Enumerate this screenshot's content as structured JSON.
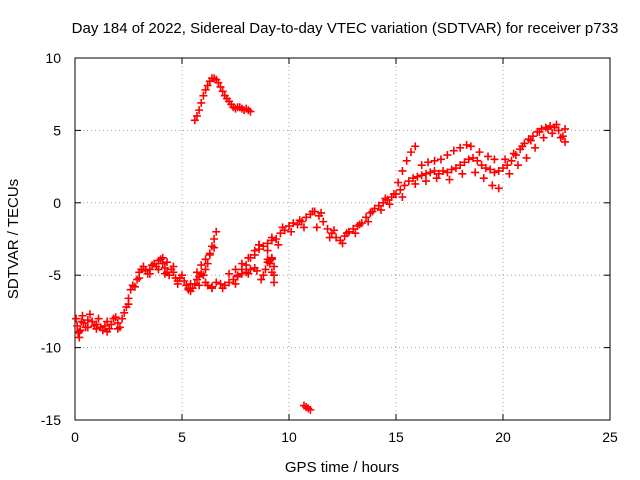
{
  "chart_data": {
    "type": "scatter",
    "title": "Day 184 of 2022, Sidereal Day-to-day VTEC variation (SDTVAR) for receiver p733",
    "xlabel": "GPS time / hours",
    "ylabel": "SDTVAR / TECUs",
    "xlim": [
      0,
      25
    ],
    "ylim": [
      -15,
      10
    ],
    "xticks": [
      0,
      5,
      10,
      15,
      20,
      25
    ],
    "xtick_labels": [
      "0",
      "5",
      "10",
      "15",
      "20",
      "25"
    ],
    "yticks": [
      -15,
      -10,
      -5,
      0,
      5,
      10
    ],
    "ytick_labels": [
      "-15",
      "-10",
      "-5",
      "0",
      "5",
      "10"
    ],
    "grid": true,
    "legend": "none",
    "marker": "plus",
    "series_color": "#ff0000",
    "series": [
      {
        "name": "main",
        "points": [
          [
            0.05,
            -8.0
          ],
          [
            0.1,
            -8.5
          ],
          [
            0.15,
            -9.0
          ],
          [
            0.2,
            -9.3
          ],
          [
            0.25,
            -8.8
          ],
          [
            0.3,
            -8.2
          ],
          [
            0.35,
            -7.8
          ],
          [
            0.4,
            -8.3
          ],
          [
            0.5,
            -8.6
          ],
          [
            0.6,
            -8.1
          ],
          [
            0.7,
            -7.7
          ],
          [
            0.8,
            -8.2
          ],
          [
            0.9,
            -8.5
          ],
          [
            1.0,
            -8.4
          ],
          [
            1.1,
            -8.0
          ],
          [
            1.2,
            -8.6
          ],
          [
            1.3,
            -8.8
          ],
          [
            1.4,
            -8.5
          ],
          [
            1.5,
            -8.2
          ],
          [
            1.6,
            -8.7
          ],
          [
            1.7,
            -8.4
          ],
          [
            1.8,
            -8.0
          ],
          [
            1.9,
            -7.9
          ],
          [
            2.0,
            -8.3
          ],
          [
            2.1,
            -8.6
          ],
          [
            2.2,
            -8.0
          ],
          [
            2.3,
            -7.6
          ],
          [
            2.4,
            -7.2
          ],
          [
            2.5,
            -6.6
          ],
          [
            2.6,
            -6.0
          ],
          [
            2.7,
            -5.7
          ],
          [
            2.8,
            -5.8
          ],
          [
            2.9,
            -5.3
          ],
          [
            3.0,
            -4.8
          ],
          [
            3.1,
            -4.6
          ],
          [
            3.2,
            -4.4
          ],
          [
            3.3,
            -4.7
          ],
          [
            3.4,
            -4.9
          ],
          [
            3.5,
            -4.6
          ],
          [
            3.6,
            -4.3
          ],
          [
            3.7,
            -4.2
          ],
          [
            3.8,
            -4.4
          ],
          [
            3.9,
            -4.6
          ],
          [
            4.0,
            -3.9
          ],
          [
            4.1,
            -4.2
          ],
          [
            4.2,
            -4.5
          ],
          [
            4.3,
            -4.8
          ],
          [
            4.4,
            -5.0
          ],
          [
            4.5,
            -4.6
          ],
          [
            4.6,
            -4.8
          ],
          [
            4.7,
            -5.2
          ],
          [
            4.8,
            -5.4
          ],
          [
            4.9,
            -5.2
          ],
          [
            5.0,
            -5.0
          ],
          [
            5.1,
            -5.4
          ],
          [
            5.2,
            -5.7
          ],
          [
            5.3,
            -6.0
          ],
          [
            5.4,
            -6.1
          ],
          [
            5.5,
            -5.9
          ],
          [
            5.6,
            -5.6
          ],
          [
            5.7,
            -5.3
          ],
          [
            5.8,
            -5.1
          ],
          [
            5.9,
            -4.9
          ],
          [
            6.0,
            -5.0
          ],
          [
            6.1,
            -4.6
          ],
          [
            6.2,
            -4.2
          ],
          [
            6.3,
            -3.6
          ],
          [
            6.4,
            -3.0
          ],
          [
            6.5,
            -2.5
          ],
          [
            6.6,
            -2.0
          ],
          [
            6.1,
            -5.5
          ],
          [
            6.2,
            -5.7
          ],
          [
            6.4,
            -5.8
          ],
          [
            6.6,
            -5.5
          ],
          [
            6.8,
            -5.6
          ],
          [
            7.0,
            -5.7
          ],
          [
            7.2,
            -5.5
          ],
          [
            7.4,
            -5.3
          ],
          [
            7.6,
            -5.1
          ],
          [
            7.8,
            -4.9
          ],
          [
            8.0,
            -4.8
          ],
          [
            8.2,
            -4.6
          ],
          [
            8.4,
            -4.5
          ],
          [
            8.6,
            -3.2
          ],
          [
            8.8,
            -3.0
          ],
          [
            9.0,
            -2.8
          ],
          [
            9.2,
            -2.6
          ],
          [
            9.4,
            -2.5
          ],
          [
            9.6,
            -2.1
          ],
          [
            9.8,
            -1.9
          ],
          [
            10.0,
            -1.6
          ],
          [
            10.2,
            -1.4
          ],
          [
            10.4,
            -1.5
          ],
          [
            10.6,
            -1.3
          ],
          [
            10.8,
            -1.0
          ],
          [
            11.0,
            -0.8
          ],
          [
            11.2,
            -0.6
          ],
          [
            11.4,
            -0.9
          ],
          [
            11.6,
            -1.3
          ],
          [
            11.8,
            -1.8
          ],
          [
            12.0,
            -2.1
          ],
          [
            12.2,
            -2.4
          ],
          [
            12.4,
            -2.6
          ],
          [
            12.6,
            -2.3
          ],
          [
            12.8,
            -2.0
          ],
          [
            13.0,
            -1.8
          ],
          [
            13.2,
            -1.6
          ],
          [
            13.4,
            -1.4
          ],
          [
            13.6,
            -1.0
          ],
          [
            13.8,
            -0.7
          ],
          [
            14.0,
            -0.4
          ],
          [
            14.2,
            -0.2
          ],
          [
            14.4,
            0.0
          ],
          [
            14.6,
            0.2
          ],
          [
            14.8,
            0.4
          ],
          [
            15.0,
            0.6
          ],
          [
            15.2,
            0.9
          ],
          [
            15.4,
            1.2
          ],
          [
            15.6,
            1.5
          ],
          [
            15.8,
            1.7
          ],
          [
            16.0,
            1.8
          ],
          [
            16.2,
            1.9
          ],
          [
            16.4,
            2.0
          ],
          [
            16.6,
            2.1
          ],
          [
            16.8,
            2.2
          ],
          [
            17.0,
            2.0
          ],
          [
            17.2,
            2.2
          ],
          [
            17.4,
            2.1
          ],
          [
            17.6,
            2.3
          ],
          [
            17.8,
            2.4
          ],
          [
            18.0,
            2.6
          ],
          [
            18.2,
            2.8
          ],
          [
            18.4,
            3.0
          ],
          [
            18.6,
            3.1
          ],
          [
            18.8,
            2.9
          ],
          [
            19.0,
            2.6
          ],
          [
            19.2,
            2.4
          ],
          [
            19.4,
            2.3
          ],
          [
            19.6,
            2.1
          ],
          [
            19.8,
            2.2
          ],
          [
            20.0,
            2.4
          ],
          [
            20.2,
            2.6
          ],
          [
            20.4,
            2.9
          ],
          [
            20.6,
            3.3
          ],
          [
            20.8,
            3.7
          ],
          [
            21.0,
            4.1
          ],
          [
            21.2,
            4.4
          ],
          [
            21.4,
            4.6
          ],
          [
            21.6,
            4.9
          ],
          [
            21.8,
            5.1
          ],
          [
            22.0,
            5.2
          ],
          [
            22.2,
            5.3
          ],
          [
            22.4,
            5.2
          ],
          [
            22.6,
            5.0
          ],
          [
            22.8,
            4.6
          ]
        ]
      },
      {
        "name": "upper-band",
        "points": [
          [
            3.9,
            -4.0
          ],
          [
            4.1,
            -3.8
          ],
          [
            4.3,
            -4.1
          ],
          [
            4.6,
            -4.4
          ],
          [
            5.4,
            -5.6
          ],
          [
            5.7,
            -4.8
          ],
          [
            5.9,
            -4.3
          ],
          [
            6.1,
            -3.9
          ],
          [
            6.3,
            -3.5
          ],
          [
            6.5,
            -3.1
          ],
          [
            7.2,
            -4.9
          ],
          [
            7.5,
            -4.6
          ],
          [
            7.8,
            -4.2
          ],
          [
            8.1,
            -3.8
          ],
          [
            8.4,
            -3.6
          ],
          [
            8.6,
            -2.9
          ],
          [
            9.2,
            -2.4
          ],
          [
            9.7,
            -1.7
          ],
          [
            10.5,
            -1.2
          ],
          [
            11.1,
            -0.6
          ],
          [
            11.5,
            -0.7
          ],
          [
            12.1,
            -1.9
          ],
          [
            12.7,
            -2.1
          ],
          [
            13.3,
            -1.5
          ],
          [
            13.9,
            -0.6
          ],
          [
            14.5,
            0.3
          ],
          [
            14.9,
            0.6
          ],
          [
            15.1,
            1.4
          ],
          [
            15.3,
            2.2
          ],
          [
            15.5,
            2.9
          ],
          [
            15.7,
            3.5
          ],
          [
            15.9,
            3.9
          ],
          [
            16.2,
            2.6
          ],
          [
            16.5,
            2.8
          ],
          [
            16.8,
            2.9
          ],
          [
            17.1,
            3.0
          ],
          [
            17.4,
            3.3
          ],
          [
            17.7,
            3.6
          ],
          [
            18.0,
            3.8
          ],
          [
            18.3,
            4.0
          ],
          [
            18.5,
            3.9
          ],
          [
            18.9,
            3.5
          ],
          [
            19.3,
            3.2
          ],
          [
            19.6,
            3.0
          ],
          [
            20.1,
            3.0
          ],
          [
            20.5,
            3.4
          ],
          [
            20.9,
            3.9
          ],
          [
            21.3,
            4.3
          ],
          [
            21.7,
            4.9
          ],
          [
            22.1,
            5.1
          ],
          [
            22.5,
            5.4
          ],
          [
            22.9,
            5.1
          ],
          [
            22.9,
            4.2
          ]
        ]
      },
      {
        "name": "lower-band",
        "points": [
          [
            0.2,
            -8.9
          ],
          [
            0.6,
            -8.6
          ],
          [
            1.0,
            -8.7
          ],
          [
            1.5,
            -8.9
          ],
          [
            2.0,
            -8.7
          ],
          [
            2.5,
            -7.0
          ],
          [
            3.0,
            -5.2
          ],
          [
            3.5,
            -4.9
          ],
          [
            4.2,
            -4.9
          ],
          [
            4.8,
            -5.6
          ],
          [
            5.3,
            -5.9
          ],
          [
            5.8,
            -5.7
          ],
          [
            6.4,
            -5.9
          ],
          [
            6.9,
            -5.9
          ],
          [
            7.5,
            -5.6
          ],
          [
            8.1,
            -4.9
          ],
          [
            8.5,
            -4.7
          ],
          [
            9.0,
            -3.3
          ],
          [
            9.5,
            -2.9
          ],
          [
            10.1,
            -2.0
          ],
          [
            10.7,
            -1.7
          ],
          [
            11.3,
            -1.7
          ],
          [
            11.9,
            -2.4
          ],
          [
            12.5,
            -2.8
          ],
          [
            13.1,
            -2.1
          ],
          [
            13.7,
            -1.3
          ],
          [
            14.3,
            -0.5
          ],
          [
            14.7,
            -0.1
          ],
          [
            15.3,
            0.4
          ],
          [
            15.9,
            1.3
          ],
          [
            16.4,
            1.5
          ],
          [
            16.9,
            1.7
          ],
          [
            17.5,
            1.6
          ],
          [
            18.1,
            2.0
          ],
          [
            18.7,
            2.1
          ],
          [
            19.1,
            1.7
          ],
          [
            19.5,
            1.2
          ],
          [
            19.8,
            1.0
          ],
          [
            20.3,
            2.0
          ],
          [
            20.7,
            2.6
          ],
          [
            21.1,
            3.1
          ],
          [
            21.5,
            3.8
          ],
          [
            21.9,
            4.5
          ],
          [
            22.3,
            4.8
          ],
          [
            22.7,
            4.5
          ]
        ]
      },
      {
        "name": "fragments",
        "points": [
          [
            7.6,
            -5.0
          ],
          [
            7.8,
            -4.6
          ],
          [
            8.0,
            -4.3
          ],
          [
            8.2,
            -3.8
          ],
          [
            8.4,
            -3.3
          ],
          [
            8.6,
            -2.9
          ],
          [
            9.0,
            -4.1
          ],
          [
            8.9,
            -4.6
          ],
          [
            8.8,
            -5.0
          ],
          [
            8.7,
            -5.3
          ],
          [
            9.2,
            -3.9
          ],
          [
            9.1,
            -4.2
          ],
          [
            9.3,
            -4.4
          ],
          [
            9.3,
            -5.0
          ],
          [
            9.3,
            -5.5
          ],
          [
            9.0,
            -3.9
          ],
          [
            9.1,
            -4.0
          ],
          [
            9.2,
            -3.8
          ],
          [
            9.2,
            -4.8
          ]
        ]
      },
      {
        "name": "outlier-high",
        "points": [
          [
            5.6,
            5.7
          ],
          [
            5.7,
            6.0
          ],
          [
            5.8,
            6.4
          ],
          [
            5.9,
            6.9
          ],
          [
            6.0,
            7.4
          ],
          [
            6.1,
            7.8
          ],
          [
            6.2,
            8.1
          ],
          [
            6.3,
            8.4
          ],
          [
            6.4,
            8.6
          ],
          [
            6.5,
            8.6
          ],
          [
            6.6,
            8.5
          ],
          [
            6.7,
            8.3
          ],
          [
            6.8,
            8.0
          ],
          [
            6.9,
            7.7
          ],
          [
            7.0,
            7.4
          ],
          [
            7.1,
            7.2
          ],
          [
            7.2,
            7.0
          ],
          [
            7.3,
            6.8
          ],
          [
            7.4,
            6.6
          ],
          [
            7.5,
            6.5
          ],
          [
            7.6,
            6.6
          ],
          [
            7.7,
            6.6
          ],
          [
            7.8,
            6.5
          ],
          [
            7.9,
            6.4
          ],
          [
            8.0,
            6.5
          ],
          [
            8.1,
            6.4
          ],
          [
            8.2,
            6.3
          ]
        ]
      },
      {
        "name": "outlier-low",
        "points": [
          [
            10.7,
            -14.0
          ],
          [
            10.8,
            -14.1
          ],
          [
            10.9,
            -14.2
          ],
          [
            11.0,
            -14.3
          ]
        ]
      }
    ]
  }
}
